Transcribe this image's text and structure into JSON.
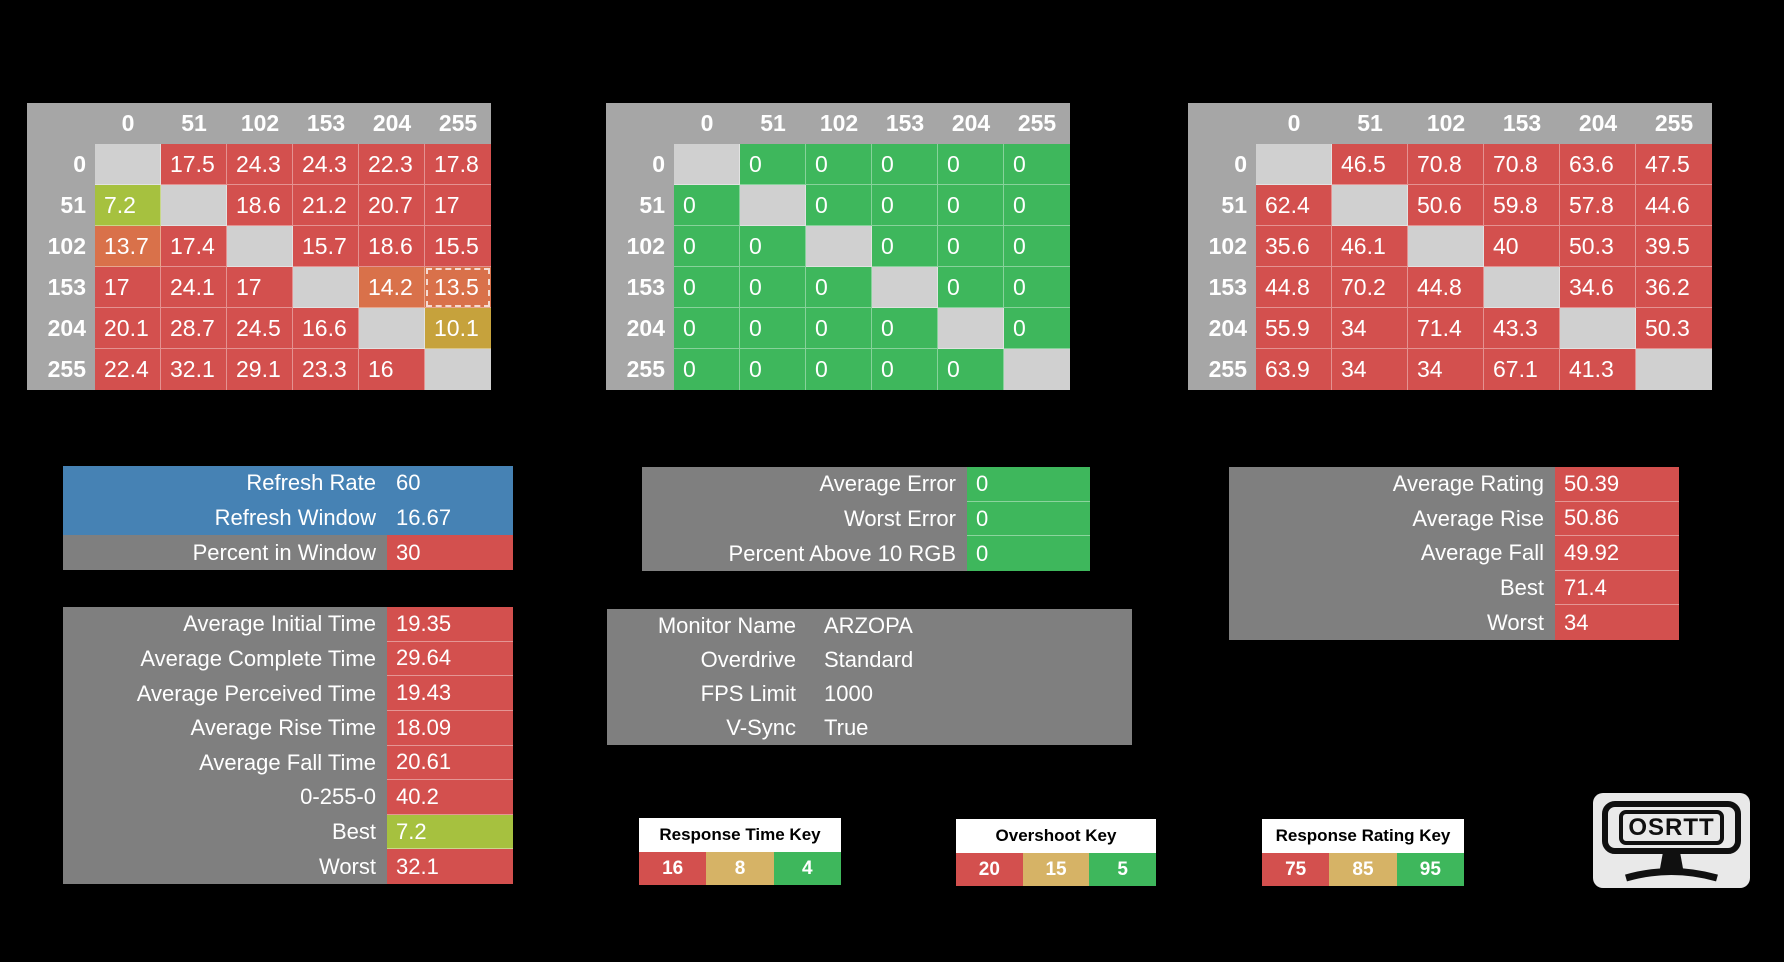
{
  "colors": {
    "background": "#000000",
    "red": "#d3504e",
    "green": "#3eb75c",
    "yellowgreen": "#a6c13f",
    "orange": "#d9714a",
    "gold": "#c6a23c",
    "tan": "#d6b366",
    "blue": "#4682b4",
    "gray": "#7f7f7f",
    "headerGray": "#a6a6a6",
    "diag": "#d0d0d0",
    "keyHeaderBg": "#ffffff"
  },
  "matrices": [
    {
      "name": "response-times",
      "col_headers": [
        "0",
        "51",
        "102",
        "153",
        "204",
        "255"
      ],
      "rows": [
        {
          "label": "0",
          "cells": [
            {
              "v": "",
              "c": "diag"
            },
            {
              "v": "17.5",
              "c": "red"
            },
            {
              "v": "24.3",
              "c": "red"
            },
            {
              "v": "24.3",
              "c": "red"
            },
            {
              "v": "22.3",
              "c": "red"
            },
            {
              "v": "17.8",
              "c": "red"
            }
          ]
        },
        {
          "label": "51",
          "cells": [
            {
              "v": "7.2",
              "c": "yellowgreen"
            },
            {
              "v": "",
              "c": "diag"
            },
            {
              "v": "18.6",
              "c": "red"
            },
            {
              "v": "21.2",
              "c": "red"
            },
            {
              "v": "20.7",
              "c": "red"
            },
            {
              "v": "17",
              "c": "red"
            }
          ]
        },
        {
          "label": "102",
          "cells": [
            {
              "v": "13.7",
              "c": "orange"
            },
            {
              "v": "17.4",
              "c": "red"
            },
            {
              "v": "",
              "c": "diag"
            },
            {
              "v": "15.7",
              "c": "red"
            },
            {
              "v": "18.6",
              "c": "red"
            },
            {
              "v": "15.5",
              "c": "red"
            }
          ]
        },
        {
          "label": "153",
          "cells": [
            {
              "v": "17",
              "c": "red"
            },
            {
              "v": "24.1",
              "c": "red"
            },
            {
              "v": "17",
              "c": "red"
            },
            {
              "v": "",
              "c": "diag"
            },
            {
              "v": "14.2",
              "c": "orange"
            },
            {
              "v": "13.5",
              "c": "orange",
              "sel": true
            }
          ]
        },
        {
          "label": "204",
          "cells": [
            {
              "v": "20.1",
              "c": "red"
            },
            {
              "v": "28.7",
              "c": "red"
            },
            {
              "v": "24.5",
              "c": "red"
            },
            {
              "v": "16.6",
              "c": "red"
            },
            {
              "v": "",
              "c": "diag"
            },
            {
              "v": "10.1",
              "c": "gold"
            }
          ]
        },
        {
          "label": "255",
          "cells": [
            {
              "v": "22.4",
              "c": "red"
            },
            {
              "v": "32.1",
              "c": "red"
            },
            {
              "v": "29.1",
              "c": "red"
            },
            {
              "v": "23.3",
              "c": "red"
            },
            {
              "v": "16",
              "c": "red"
            },
            {
              "v": "",
              "c": "diag"
            }
          ]
        }
      ]
    },
    {
      "name": "overshoot",
      "col_headers": [
        "0",
        "51",
        "102",
        "153",
        "204",
        "255"
      ],
      "rows": [
        {
          "label": "0",
          "cells": [
            {
              "v": "",
              "c": "diag"
            },
            {
              "v": "0",
              "c": "green"
            },
            {
              "v": "0",
              "c": "green"
            },
            {
              "v": "0",
              "c": "green"
            },
            {
              "v": "0",
              "c": "green"
            },
            {
              "v": "0",
              "c": "green"
            }
          ]
        },
        {
          "label": "51",
          "cells": [
            {
              "v": "0",
              "c": "green"
            },
            {
              "v": "",
              "c": "diag"
            },
            {
              "v": "0",
              "c": "green"
            },
            {
              "v": "0",
              "c": "green"
            },
            {
              "v": "0",
              "c": "green"
            },
            {
              "v": "0",
              "c": "green"
            }
          ]
        },
        {
          "label": "102",
          "cells": [
            {
              "v": "0",
              "c": "green"
            },
            {
              "v": "0",
              "c": "green"
            },
            {
              "v": "",
              "c": "diag"
            },
            {
              "v": "0",
              "c": "green"
            },
            {
              "v": "0",
              "c": "green"
            },
            {
              "v": "0",
              "c": "green"
            }
          ]
        },
        {
          "label": "153",
          "cells": [
            {
              "v": "0",
              "c": "green"
            },
            {
              "v": "0",
              "c": "green"
            },
            {
              "v": "0",
              "c": "green"
            },
            {
              "v": "",
              "c": "diag"
            },
            {
              "v": "0",
              "c": "green"
            },
            {
              "v": "0",
              "c": "green"
            }
          ]
        },
        {
          "label": "204",
          "cells": [
            {
              "v": "0",
              "c": "green"
            },
            {
              "v": "0",
              "c": "green"
            },
            {
              "v": "0",
              "c": "green"
            },
            {
              "v": "0",
              "c": "green"
            },
            {
              "v": "",
              "c": "diag"
            },
            {
              "v": "0",
              "c": "green"
            }
          ]
        },
        {
          "label": "255",
          "cells": [
            {
              "v": "0",
              "c": "green"
            },
            {
              "v": "0",
              "c": "green"
            },
            {
              "v": "0",
              "c": "green"
            },
            {
              "v": "0",
              "c": "green"
            },
            {
              "v": "0",
              "c": "green"
            },
            {
              "v": "",
              "c": "diag"
            }
          ]
        }
      ]
    },
    {
      "name": "response-ratings",
      "col_headers": [
        "0",
        "51",
        "102",
        "153",
        "204",
        "255"
      ],
      "rows": [
        {
          "label": "0",
          "cells": [
            {
              "v": "",
              "c": "diag"
            },
            {
              "v": "46.5",
              "c": "red"
            },
            {
              "v": "70.8",
              "c": "red"
            },
            {
              "v": "70.8",
              "c": "red"
            },
            {
              "v": "63.6",
              "c": "red"
            },
            {
              "v": "47.5",
              "c": "red"
            }
          ]
        },
        {
          "label": "51",
          "cells": [
            {
              "v": "62.4",
              "c": "red"
            },
            {
              "v": "",
              "c": "diag"
            },
            {
              "v": "50.6",
              "c": "red"
            },
            {
              "v": "59.8",
              "c": "red"
            },
            {
              "v": "57.8",
              "c": "red"
            },
            {
              "v": "44.6",
              "c": "red"
            }
          ]
        },
        {
          "label": "102",
          "cells": [
            {
              "v": "35.6",
              "c": "red"
            },
            {
              "v": "46.1",
              "c": "red"
            },
            {
              "v": "",
              "c": "diag"
            },
            {
              "v": "40",
              "c": "red"
            },
            {
              "v": "50.3",
              "c": "red"
            },
            {
              "v": "39.5",
              "c": "red"
            }
          ]
        },
        {
          "label": "153",
          "cells": [
            {
              "v": "44.8",
              "c": "red"
            },
            {
              "v": "70.2",
              "c": "red"
            },
            {
              "v": "44.8",
              "c": "red"
            },
            {
              "v": "",
              "c": "diag"
            },
            {
              "v": "34.6",
              "c": "red"
            },
            {
              "v": "36.2",
              "c": "red"
            }
          ]
        },
        {
          "label": "204",
          "cells": [
            {
              "v": "55.9",
              "c": "red"
            },
            {
              "v": "34",
              "c": "red"
            },
            {
              "v": "71.4",
              "c": "red"
            },
            {
              "v": "43.3",
              "c": "red"
            },
            {
              "v": "",
              "c": "diag"
            },
            {
              "v": "50.3",
              "c": "red"
            }
          ]
        },
        {
          "label": "255",
          "cells": [
            {
              "v": "63.9",
              "c": "red"
            },
            {
              "v": "34",
              "c": "red"
            },
            {
              "v": "34",
              "c": "red"
            },
            {
              "v": "67.1",
              "c": "red"
            },
            {
              "v": "41.3",
              "c": "red"
            },
            {
              "v": "",
              "c": "diag"
            }
          ]
        }
      ]
    }
  ],
  "panels": [
    {
      "name": "refresh",
      "rows": [
        {
          "label": "Refresh Rate",
          "value": "60",
          "lc": "blue",
          "vc": "blue"
        },
        {
          "label": "Refresh Window",
          "value": "16.67",
          "lc": "blue",
          "vc": "blue"
        },
        {
          "label": "Percent in Window",
          "value": "30",
          "lc": "gray",
          "vc": "red"
        }
      ]
    },
    {
      "name": "error",
      "rows": [
        {
          "label": "Average Error",
          "value": "0",
          "lc": "gray",
          "vc": "green"
        },
        {
          "label": "Worst Error",
          "value": "0",
          "lc": "gray",
          "vc": "green"
        },
        {
          "label": "Percent Above 10 RGB",
          "value": "0",
          "lc": "gray",
          "vc": "green"
        }
      ]
    },
    {
      "name": "rating",
      "rows": [
        {
          "label": "Average Rating",
          "value": "50.39",
          "lc": "gray",
          "vc": "red"
        },
        {
          "label": "Average Rise",
          "value": "50.86",
          "lc": "gray",
          "vc": "red"
        },
        {
          "label": "Average Fall",
          "value": "49.92",
          "lc": "gray",
          "vc": "red"
        },
        {
          "label": "Best",
          "value": "71.4",
          "lc": "gray",
          "vc": "red"
        },
        {
          "label": "Worst",
          "value": "34",
          "lc": "gray",
          "vc": "red"
        }
      ]
    },
    {
      "name": "times",
      "rows": [
        {
          "label": "Average Initial Time",
          "value": "19.35",
          "lc": "gray",
          "vc": "red"
        },
        {
          "label": "Average Complete Time",
          "value": "29.64",
          "lc": "gray",
          "vc": "red"
        },
        {
          "label": "Average Perceived Time",
          "value": "19.43",
          "lc": "gray",
          "vc": "red"
        },
        {
          "label": "Average Rise Time",
          "value": "18.09",
          "lc": "gray",
          "vc": "red"
        },
        {
          "label": "Average Fall Time",
          "value": "20.61",
          "lc": "gray",
          "vc": "red"
        },
        {
          "label": "0-255-0",
          "value": "40.2",
          "lc": "gray",
          "vc": "red"
        },
        {
          "label": "Best",
          "value": "7.2",
          "lc": "gray",
          "vc": "yellowgreen"
        },
        {
          "label": "Worst",
          "value": "32.1",
          "lc": "gray",
          "vc": "red"
        }
      ]
    },
    {
      "name": "monitor",
      "rows": [
        {
          "label": "Monitor Name",
          "value": "ARZOPA",
          "lc": "gray",
          "vc": "gray"
        },
        {
          "label": "Overdrive",
          "value": "Standard",
          "lc": "gray",
          "vc": "gray"
        },
        {
          "label": "FPS Limit",
          "value": "1000",
          "lc": "gray",
          "vc": "gray"
        },
        {
          "label": "V-Sync",
          "value": "True",
          "lc": "gray",
          "vc": "gray"
        }
      ]
    }
  ],
  "keys": [
    {
      "title": "Response Time Key",
      "cells": [
        {
          "v": "16",
          "c": "red"
        },
        {
          "v": "8",
          "c": "tan"
        },
        {
          "v": "4",
          "c": "green"
        }
      ]
    },
    {
      "title": "Overshoot Key",
      "cells": [
        {
          "v": "20",
          "c": "red"
        },
        {
          "v": "15",
          "c": "tan"
        },
        {
          "v": "5",
          "c": "green"
        }
      ]
    },
    {
      "title": "Response Rating Key",
      "cells": [
        {
          "v": "75",
          "c": "red"
        },
        {
          "v": "85",
          "c": "tan"
        },
        {
          "v": "95",
          "c": "green"
        }
      ]
    }
  ],
  "logo": {
    "text": "OSRTT"
  }
}
